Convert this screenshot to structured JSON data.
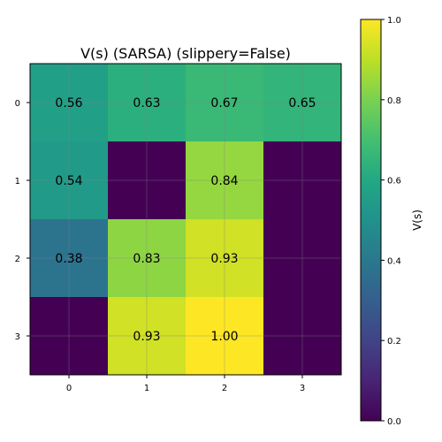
{
  "chart_data": {
    "type": "heatmap",
    "title": "V(s) (SARSA) (slippery=False)",
    "rows": [
      "0",
      "1",
      "2",
      "3"
    ],
    "cols": [
      "0",
      "1",
      "2",
      "3"
    ],
    "values": [
      [
        0.56,
        0.63,
        0.67,
        0.65
      ],
      [
        0.54,
        0.0,
        0.84,
        0.0
      ],
      [
        0.38,
        0.83,
        0.93,
        0.0
      ],
      [
        0.0,
        0.93,
        1.0,
        0.0
      ]
    ],
    "cell_labels": [
      [
        "0.56",
        "0.63",
        "0.67",
        "0.65"
      ],
      [
        "0.54",
        "",
        "0.84",
        ""
      ],
      [
        "0.38",
        "0.83",
        "0.93",
        ""
      ],
      [
        "",
        "0.93",
        "1.00",
        ""
      ]
    ],
    "colorbar": {
      "label": "V(s)",
      "range": [
        0,
        1
      ],
      "ticks": [
        "0.0",
        "0.2",
        "0.4",
        "0.6",
        "0.8",
        "1.0"
      ],
      "colormap": "viridis"
    },
    "grid": true
  }
}
